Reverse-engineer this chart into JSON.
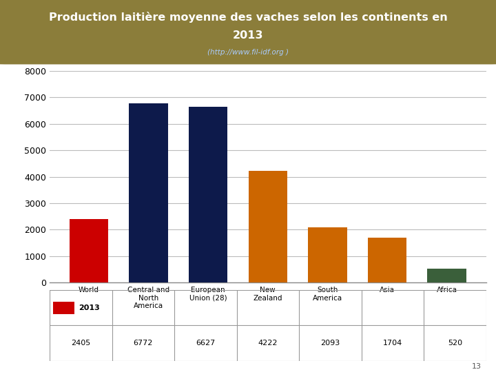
{
  "title_line1": "Production laitière moyenne des vaches selon les continents en",
  "title_line2": "2013",
  "subtitle": "(http://www.fil-idf.org )",
  "categories": [
    "World",
    "Central and\nNorth\nAmerica",
    "European\nUnion (28)",
    "New\nZealand",
    "South\nAmerica",
    "Asia",
    "Africa"
  ],
  "values": [
    2405,
    6772,
    6627,
    4222,
    2093,
    1704,
    520
  ],
  "bar_colors": [
    "#cc0000",
    "#0d1a4b",
    "#0d1a4b",
    "#cc6600",
    "#cc6600",
    "#cc6600",
    "#3a5f3a"
  ],
  "ylim": [
    0,
    8000
  ],
  "yticks": [
    0,
    1000,
    2000,
    3000,
    4000,
    5000,
    6000,
    7000,
    8000
  ],
  "legend_label": "2013",
  "legend_color": "#cc0000",
  "title_bg_color": "#8b7d3a",
  "title_text_color": "#ffffff",
  "subtitle_color": "#aaccff",
  "page_number": "13",
  "bg_color": "#ffffff",
  "grid_color": "#bbbbbb",
  "table_line_color": "#999999"
}
